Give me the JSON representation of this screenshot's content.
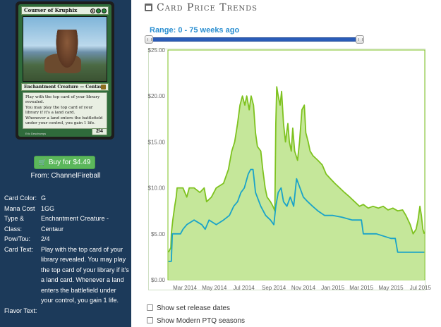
{
  "card": {
    "name": "Courser of Kruphix",
    "mana": "1GG",
    "mana_generic": "1",
    "type_line": "Enchantment Creature — Centaur",
    "text_lines": [
      "Play with the top card of your library revealed.",
      "You may play the top card of your library if it's a land card.",
      "Whenever a land enters the battlefield under your control, you gain 1 life."
    ],
    "pt": "2/4",
    "artist": "Eric Deschamps"
  },
  "buy": {
    "label": "Buy for $4.49",
    "from": "From: ChannelFireball"
  },
  "details": [
    {
      "label": "Card Color:",
      "value": "G"
    },
    {
      "label": "Mana Cost",
      "value": "1GG"
    },
    {
      "label": "Type & Class:",
      "value": "Enchantment Creature - Centaur"
    },
    {
      "label": "Pow/Tou:",
      "value": "2/4"
    },
    {
      "label": "Card Text:",
      "value": "Play with the top card of your library revealed. You may play the top card of your library if it's a land card. Whenever a land enters the battlefield under your control, you gain 1 life."
    },
    {
      "label": "Flavor Text:",
      "value": ""
    }
  ],
  "panel": {
    "title": "Card Price Trends",
    "range_label": "Range: 0 - 75 weeks ago"
  },
  "options": [
    {
      "label": "Show set release dates"
    },
    {
      "label": "Show Modern PTQ seasons"
    }
  ],
  "colors": {
    "sidebar_bg": "#1c3a5a",
    "green_line": "#7ec21f",
    "green_fill": "#c5e79a",
    "blue_line": "#1aa3c8",
    "button": "#5bb75b",
    "accent_blue": "#2b8fd1"
  },
  "chart_data": {
    "type": "line",
    "title": "",
    "xlabel": "",
    "ylabel": "",
    "ylim": [
      0,
      25
    ],
    "yticks": [
      "$0.00",
      "$5.00",
      "$10.00",
      "$15.00",
      "$20.00",
      "$25.00"
    ],
    "xticks": [
      "Mar 2014",
      "May 2014",
      "Jul 2014",
      "Sep 2014",
      "Nov 2014",
      "Jan 2015",
      "Mar 2015",
      "May 2015",
      "Jul 2015"
    ],
    "xlim": [
      "2014-01-25",
      "2015-07-10"
    ],
    "series": [
      {
        "name": "",
        "color": "#7ec21f",
        "fill": true,
        "points": [
          [
            "2014-01-26",
            3.0
          ],
          [
            "2014-01-31",
            3.5
          ],
          [
            "2014-02-01",
            5.0
          ],
          [
            "2014-02-04",
            6.5
          ],
          [
            "2014-02-08",
            8.0
          ],
          [
            "2014-02-11",
            9.0
          ],
          [
            "2014-02-13",
            10.0
          ],
          [
            "2014-02-25",
            10.0
          ],
          [
            "2014-03-05",
            9.0
          ],
          [
            "2014-03-10",
            10.0
          ],
          [
            "2014-03-20",
            10.0
          ],
          [
            "2014-04-01",
            9.5
          ],
          [
            "2014-04-10",
            10.0
          ],
          [
            "2014-04-15",
            8.5
          ],
          [
            "2014-04-25",
            9.0
          ],
          [
            "2014-05-05",
            10.0
          ],
          [
            "2014-05-20",
            10.5
          ],
          [
            "2014-05-30",
            12.0
          ],
          [
            "2014-06-06",
            14.0
          ],
          [
            "2014-06-12",
            15.0
          ],
          [
            "2014-06-18",
            17.0
          ],
          [
            "2014-06-23",
            19.0
          ],
          [
            "2014-06-28",
            20.0
          ],
          [
            "2014-07-03",
            19.0
          ],
          [
            "2014-07-07",
            20.0
          ],
          [
            "2014-07-12",
            18.5
          ],
          [
            "2014-07-16",
            20.0
          ],
          [
            "2014-07-21",
            19.0
          ],
          [
            "2014-07-25",
            16.0
          ],
          [
            "2014-07-29",
            14.5
          ],
          [
            "2014-08-05",
            14.0
          ],
          [
            "2014-08-09",
            12.0
          ],
          [
            "2014-08-14",
            10.0
          ],
          [
            "2014-08-18",
            9.0
          ],
          [
            "2014-08-25",
            8.5
          ],
          [
            "2014-08-30",
            8.0
          ],
          [
            "2014-09-03",
            7.5
          ],
          [
            "2014-09-05",
            17.0
          ],
          [
            "2014-09-07",
            21.0
          ],
          [
            "2014-09-10",
            20.0
          ],
          [
            "2014-09-14",
            19.0
          ],
          [
            "2014-09-17",
            20.5
          ],
          [
            "2014-09-21",
            17.0
          ],
          [
            "2014-09-25",
            15.0
          ],
          [
            "2014-09-30",
            17.0
          ],
          [
            "2014-10-03",
            15.0
          ],
          [
            "2014-10-07",
            14.0
          ],
          [
            "2014-10-10",
            16.5
          ],
          [
            "2014-10-14",
            14.0
          ],
          [
            "2014-10-20",
            13.0
          ],
          [
            "2014-10-24",
            15.0
          ],
          [
            "2014-10-29",
            18.5
          ],
          [
            "2014-11-03",
            19.0
          ],
          [
            "2014-11-06",
            16.0
          ],
          [
            "2014-11-11",
            15.0
          ],
          [
            "2014-11-15",
            14.0
          ],
          [
            "2014-11-21",
            13.5
          ],
          [
            "2014-12-01",
            13.0
          ],
          [
            "2014-12-10",
            12.5
          ],
          [
            "2014-12-18",
            11.5
          ],
          [
            "2014-12-27",
            11.0
          ],
          [
            "2015-01-05",
            10.5
          ],
          [
            "2015-01-15",
            10.0
          ],
          [
            "2015-01-25",
            9.5
          ],
          [
            "2015-02-05",
            9.0
          ],
          [
            "2015-02-15",
            8.5
          ],
          [
            "2015-02-25",
            8.0
          ],
          [
            "2015-03-05",
            8.2
          ],
          [
            "2015-03-15",
            7.8
          ],
          [
            "2015-03-25",
            8.0
          ],
          [
            "2015-04-05",
            7.8
          ],
          [
            "2015-04-15",
            8.0
          ],
          [
            "2015-04-25",
            7.6
          ],
          [
            "2015-05-05",
            7.8
          ],
          [
            "2015-05-15",
            7.5
          ],
          [
            "2015-05-25",
            7.6
          ],
          [
            "2015-06-01",
            7.0
          ],
          [
            "2015-06-10",
            6.0
          ],
          [
            "2015-06-16",
            5.0
          ],
          [
            "2015-06-22",
            5.5
          ],
          [
            "2015-06-26",
            6.5
          ],
          [
            "2015-06-30",
            8.0
          ],
          [
            "2015-07-03",
            7.0
          ],
          [
            "2015-07-06",
            5.5
          ],
          [
            "2015-07-09",
            5.0
          ]
        ]
      },
      {
        "name": "",
        "color": "#1aa3c8",
        "fill": false,
        "points": [
          [
            "2014-01-26",
            2.0
          ],
          [
            "2014-02-01",
            2.0
          ],
          [
            "2014-02-03",
            5.0
          ],
          [
            "2014-02-20",
            5.0
          ],
          [
            "2014-02-25",
            5.5
          ],
          [
            "2014-03-05",
            6.0
          ],
          [
            "2014-03-20",
            6.5
          ],
          [
            "2014-04-05",
            6.0
          ],
          [
            "2014-04-12",
            5.5
          ],
          [
            "2014-04-20",
            6.5
          ],
          [
            "2014-05-05",
            6.0
          ],
          [
            "2014-05-20",
            6.5
          ],
          [
            "2014-06-01",
            7.0
          ],
          [
            "2014-06-10",
            8.0
          ],
          [
            "2014-06-18",
            8.5
          ],
          [
            "2014-06-25",
            9.5
          ],
          [
            "2014-07-02",
            10.0
          ],
          [
            "2014-07-10",
            11.5
          ],
          [
            "2014-07-15",
            12.0
          ],
          [
            "2014-07-20",
            12.0
          ],
          [
            "2014-07-25",
            9.5
          ],
          [
            "2014-08-05",
            8.0
          ],
          [
            "2014-08-15",
            7.0
          ],
          [
            "2014-08-25",
            6.5
          ],
          [
            "2014-09-01",
            6.0
          ],
          [
            "2014-09-05",
            8.0
          ],
          [
            "2014-09-10",
            9.5
          ],
          [
            "2014-09-16",
            10.0
          ],
          [
            "2014-09-21",
            8.5
          ],
          [
            "2014-09-28",
            8.0
          ],
          [
            "2014-10-05",
            9.0
          ],
          [
            "2014-10-12",
            8.0
          ],
          [
            "2014-10-18",
            11.0
          ],
          [
            "2014-10-25",
            10.0
          ],
          [
            "2014-11-01",
            9.0
          ],
          [
            "2014-11-10",
            8.5
          ],
          [
            "2014-11-20",
            8.0
          ],
          [
            "2014-12-01",
            7.5
          ],
          [
            "2014-12-15",
            7.0
          ],
          [
            "2015-01-01",
            7.0
          ],
          [
            "2015-01-20",
            6.8
          ],
          [
            "2015-02-10",
            6.5
          ],
          [
            "2015-03-01",
            6.5
          ],
          [
            "2015-03-05",
            5.0
          ],
          [
            "2015-04-01",
            5.0
          ],
          [
            "2015-05-01",
            4.5
          ],
          [
            "2015-05-10",
            4.5
          ],
          [
            "2015-05-15",
            3.0
          ],
          [
            "2015-07-09",
            3.0
          ]
        ]
      }
    ],
    "grid": false
  }
}
